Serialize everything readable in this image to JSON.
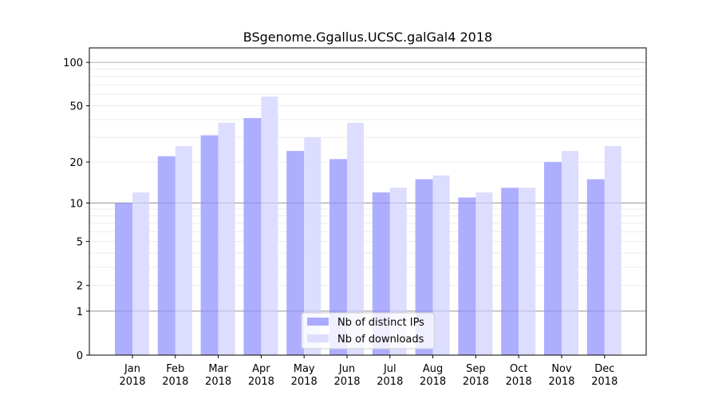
{
  "chart_data": {
    "type": "bar",
    "title": "BSgenome.Ggallus.UCSC.galGal4 2018",
    "xlabel": "",
    "ylabel": "",
    "yscale": "log(1+y)",
    "ylim": [
      0,
      126
    ],
    "yticks": [
      0,
      1,
      2,
      5,
      10,
      20,
      50,
      100
    ],
    "grid": true,
    "legend_position": "bottom-center",
    "categories": [
      "Jan\n2018",
      "Feb\n2018",
      "Mar\n2018",
      "Apr\n2018",
      "May\n2018",
      "Jun\n2018",
      "Jul\n2018",
      "Aug\n2018",
      "Sep\n2018",
      "Oct\n2018",
      "Nov\n2018",
      "Dec\n2018"
    ],
    "series": [
      {
        "name": "Nb of distinct IPs",
        "color": "#aaaaff",
        "values": [
          10,
          22,
          31,
          41,
          24,
          21,
          12,
          15,
          11,
          13,
          20,
          15
        ]
      },
      {
        "name": "Nb of downloads",
        "color": "#ddddff",
        "values": [
          12,
          26,
          38,
          58,
          30,
          38,
          13,
          16,
          12,
          13,
          24,
          26
        ]
      }
    ]
  }
}
